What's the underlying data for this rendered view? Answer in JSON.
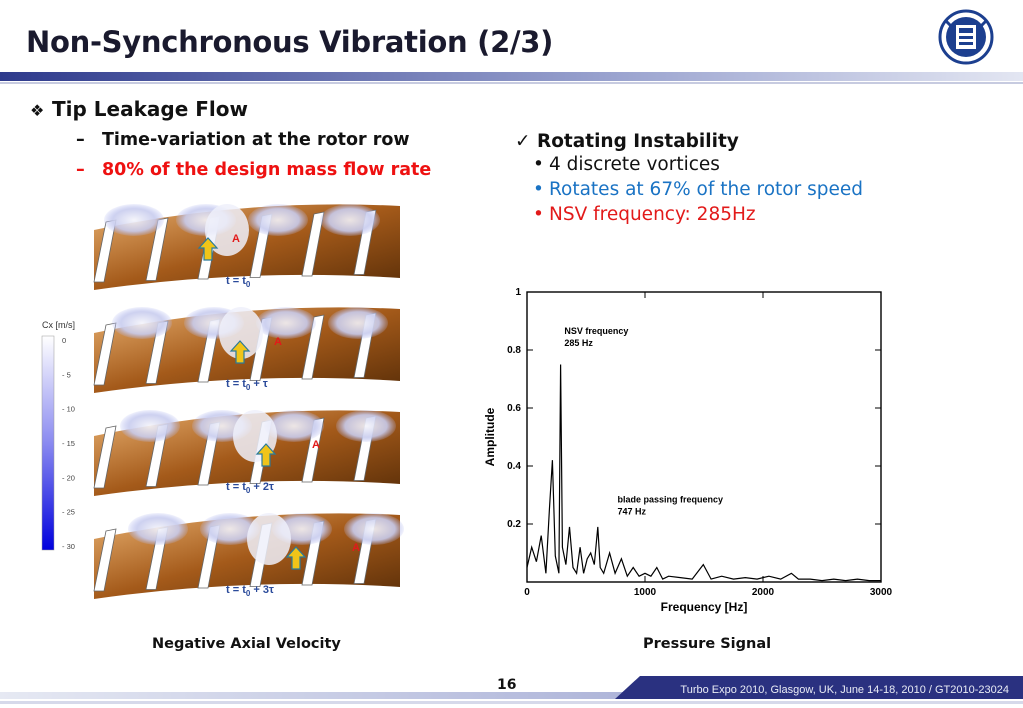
{
  "slide": {
    "title": "Non-Synchronous Vibration (2/3)",
    "page_number": "16",
    "footer": "Turbo Expo 2010, Glasgow, UK, June 14-18, 2010 / GT2010-23024"
  },
  "left": {
    "bullet_icon": "diamond-bullet-icon",
    "heading": "Tip Leakage Flow",
    "sub1": "Time-variation at the rotor row",
    "sub2": "80% of the design mass flow rate",
    "sub_marker": "–",
    "caption": "Negative Axial Velocity",
    "colorbar": {
      "title": "Cx  [m/s]",
      "ticks": [
        "0",
        "- 5",
        "- 10",
        "- 15",
        "- 20",
        "- 25",
        "- 30"
      ]
    },
    "frames": [
      {
        "label": "t = t",
        "sub": "0",
        "suffix": ""
      },
      {
        "label": "t = t",
        "sub": "0",
        "suffix": " + τ"
      },
      {
        "label": "t = t",
        "sub": "0",
        "suffix": " + 2τ"
      },
      {
        "label": "t = t",
        "sub": "0",
        "suffix": " + 3τ"
      }
    ],
    "vortex_marker": "A",
    "colors": {
      "marker": "#e21a1a",
      "arrow": "#f0c419",
      "frame_label": "#2a4a9a"
    }
  },
  "right": {
    "check_icon": "checkmark-icon",
    "heading": "Rotating Instability",
    "items": [
      "4 discrete vortices",
      "Rotates at 67% of the rotor speed",
      "NSV frequency: 285Hz"
    ],
    "item_marker": "•",
    "colors": {
      "item2": "#1a73c4",
      "item3": "#e21a1a"
    },
    "caption": "Pressure Signal"
  },
  "chart_data": {
    "type": "line",
    "xlabel": "Frequency [Hz]",
    "ylabel": "Amplitude",
    "xlim": [
      0,
      3000
    ],
    "ylim": [
      0,
      1
    ],
    "xticks": [
      0,
      1000,
      2000,
      3000
    ],
    "yticks": [
      0.2,
      0.4,
      0.6,
      0.8,
      1
    ],
    "ytick_labels": [
      "0.2",
      "0.4",
      "0.6",
      "0.8",
      "1"
    ],
    "annotations": [
      {
        "text": "NSV frequency",
        "text2": "285 Hz",
        "x": 300,
        "y": 0.82
      },
      {
        "text": "blade passing frequency",
        "text2": "747 Hz",
        "x": 750,
        "y": 0.24
      }
    ],
    "series": [
      {
        "x": [
          0,
          40,
          80,
          120,
          160,
          190,
          215,
          240,
          270,
          285,
          300,
          330,
          360,
          390,
          420,
          450,
          480,
          510,
          540,
          570,
          600,
          620,
          650,
          700,
          747,
          800,
          850,
          900,
          950,
          1000,
          1050,
          1100,
          1150,
          1200,
          1300,
          1400,
          1494,
          1560,
          1650,
          1750,
          1850,
          1950,
          2050,
          2150,
          2241,
          2300,
          2400,
          2500,
          2600,
          2700,
          2800,
          2900,
          3000
        ],
        "y": [
          0.05,
          0.12,
          0.07,
          0.16,
          0.03,
          0.25,
          0.42,
          0.09,
          0.03,
          0.75,
          0.12,
          0.06,
          0.19,
          0.05,
          0.03,
          0.12,
          0.03,
          0.08,
          0.1,
          0.06,
          0.19,
          0.05,
          0.03,
          0.1,
          0.03,
          0.08,
          0.02,
          0.05,
          0.02,
          0.03,
          0.02,
          0.05,
          0.01,
          0.02,
          0.015,
          0.01,
          0.06,
          0.01,
          0.02,
          0.01,
          0.015,
          0.01,
          0.02,
          0.01,
          0.03,
          0.01,
          0.01,
          0.005,
          0.01,
          0.005,
          0.01,
          0.005,
          0.005
        ]
      }
    ]
  }
}
